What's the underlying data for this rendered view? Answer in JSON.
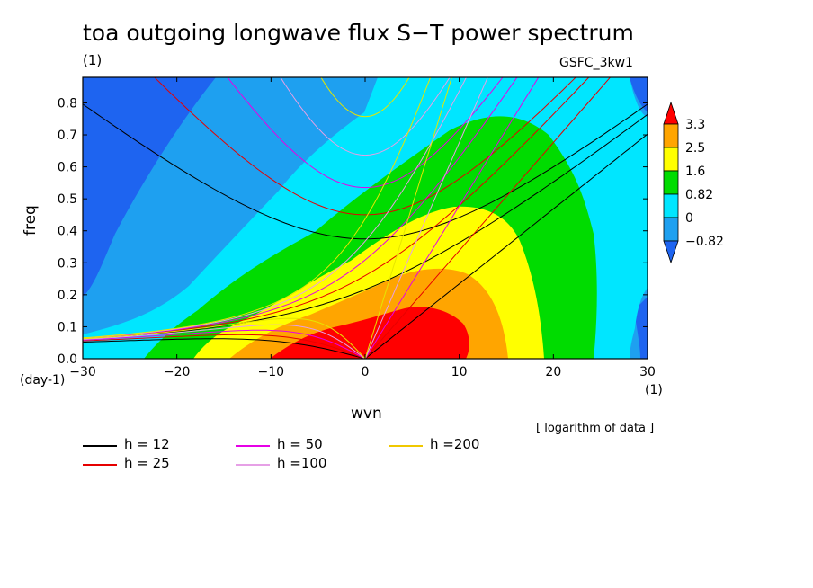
{
  "header": {
    "title": "toa outgoing longwave flux S−T power spectrum",
    "subtitle_left": "(1)",
    "subtitle_right": "GSFC_3kw1"
  },
  "note": "[ logarithm of data ]",
  "colors": {
    "contour_levels": [
      "#1e64f0",
      "#1ea0f0",
      "#00e6ff",
      "#00dc00",
      "#ffff00",
      "#ffa500",
      "#ff0000"
    ],
    "frame": "#000000"
  },
  "chart_data": {
    "type": "heatmap",
    "title": "toa outgoing longwave flux S−T power spectrum",
    "xlabel": "wvn",
    "ylabel": "freq",
    "x_unit_label": "(1)",
    "y_unit_label": "(day-1)",
    "xlim": [
      -30,
      30
    ],
    "ylim": [
      0,
      0.88
    ],
    "x_ticks": [
      "-30",
      "-20",
      "-10",
      "0",
      "10",
      "20",
      "30"
    ],
    "y_ticks": [
      "0.0",
      "0.1",
      "0.2",
      "0.3",
      "0.4",
      "0.5",
      "0.6",
      "0.7",
      "0.8"
    ],
    "colorbar": {
      "labels": [
        "3.3",
        "2.5",
        "1.6",
        "0.82",
        "0",
        "-0.82"
      ],
      "levels": [
        -0.82,
        0,
        0.82,
        1.6,
        2.5,
        3.3
      ]
    },
    "dispersion_curves": [
      {
        "name": "h = 12",
        "h": 12,
        "color": "#000000"
      },
      {
        "name": "h = 25",
        "h": 25,
        "color": "#e60000"
      },
      {
        "name": "h = 50",
        "h": 50,
        "color": "#e600e6"
      },
      {
        "name": "h =100",
        "h": 100,
        "color": "#e6a0e6"
      },
      {
        "name": "h =200",
        "h": 200,
        "color": "#e6e600"
      }
    ],
    "grid": false,
    "legend_position": "bottom-left"
  }
}
